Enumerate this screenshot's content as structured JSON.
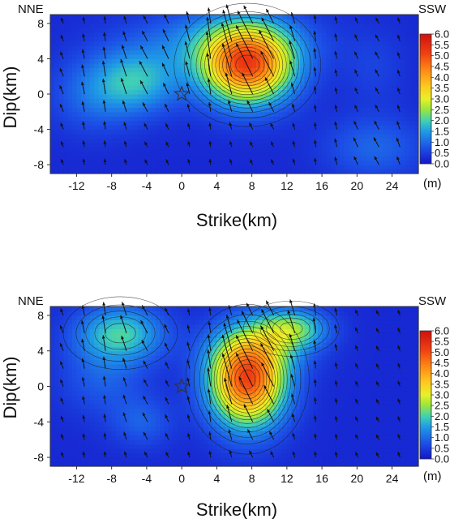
{
  "chart_data": [
    {
      "type": "heatmap",
      "xlabel": "Strike(km)",
      "ylabel": "Dip(km)",
      "xlim": [
        -15,
        27
      ],
      "ylim": [
        -9,
        9
      ],
      "xticks": [
        "-12",
        "-8",
        "-4",
        "0",
        "4",
        "8",
        "12",
        "16",
        "20",
        "24"
      ],
      "xtick_values": [
        -12,
        -8,
        -4,
        0,
        4,
        8,
        12,
        16,
        20,
        24
      ],
      "yticks": [
        "8",
        "4",
        "0",
        "-4",
        "-8"
      ],
      "ytick_values": [
        8,
        4,
        0,
        -4,
        -8
      ],
      "left_label": "NNE",
      "right_label": "SSW",
      "hypocenter": [
        0,
        0
      ],
      "colorbar": {
        "ticks": [
          "6.0",
          "5.5",
          "5.0",
          "4.5",
          "4.0",
          "3.5",
          "3.0",
          "2.5",
          "2.0",
          "1.5",
          "1.0",
          "0.5",
          "0.0"
        ],
        "min": 0,
        "max": 6,
        "unit": "(m)"
      },
      "slip_patches": [
        {
          "x": 7.5,
          "y": 3.3,
          "sx": 3.6,
          "sy": 3.0,
          "peak": 4.5
        },
        {
          "x": 4.5,
          "y": 6.0,
          "sx": 7.0,
          "sy": 2.5,
          "peak": 1.0
        },
        {
          "x": -5.0,
          "y": 1.5,
          "sx": 3.5,
          "sy": 2.5,
          "peak": 1.4
        },
        {
          "x": -10.0,
          "y": 0.0,
          "sx": 3.5,
          "sy": 3.0,
          "peak": 0.7
        },
        {
          "x": 22.0,
          "y": -6.0,
          "sx": 4.0,
          "sy": 2.5,
          "peak": 0.7
        },
        {
          "x": 22.0,
          "y": 3.0,
          "sx": 2.5,
          "sy": 3.0,
          "peak": 0.3
        }
      ]
    },
    {
      "type": "heatmap",
      "xlabel": "Strike(km)",
      "ylabel": "Dip(km)",
      "xlim": [
        -15,
        27
      ],
      "ylim": [
        -9,
        9
      ],
      "xticks": [
        "-12",
        "-8",
        "-4",
        "0",
        "4",
        "8",
        "12",
        "16",
        "20",
        "24"
      ],
      "xtick_values": [
        -12,
        -8,
        -4,
        0,
        4,
        8,
        12,
        16,
        20,
        24
      ],
      "yticks": [
        "8",
        "4",
        "0",
        "-4",
        "-8"
      ],
      "ytick_values": [
        8,
        4,
        0,
        -4,
        -8
      ],
      "left_label": "NNE",
      "right_label": "SSW",
      "hypocenter": [
        0,
        0
      ],
      "colorbar": {
        "ticks": [
          "6.0",
          "5.5",
          "5.0",
          "4.5",
          "4.0",
          "3.5",
          "3.0",
          "2.5",
          "2.0",
          "1.5",
          "1.0",
          "0.5",
          "0.0"
        ],
        "min": 0,
        "max": 6,
        "unit": "(m)"
      },
      "slip_patches": [
        {
          "x": 7.5,
          "y": 0.8,
          "sx": 3.0,
          "sy": 3.6,
          "peak": 4.7
        },
        {
          "x": 12.5,
          "y": 6.5,
          "sx": 2.8,
          "sy": 1.6,
          "peak": 2.0
        },
        {
          "x": 9.0,
          "y": 4.0,
          "sx": 4.0,
          "sy": 2.0,
          "peak": 0.7
        },
        {
          "x": -7.0,
          "y": 6.0,
          "sx": 3.5,
          "sy": 2.2,
          "peak": 1.7
        },
        {
          "x": -9.0,
          "y": 1.0,
          "sx": 3.5,
          "sy": 3.0,
          "peak": 0.6
        },
        {
          "x": -4.5,
          "y": -4.0,
          "sx": 2.5,
          "sy": 2.0,
          "peak": 0.6
        }
      ]
    }
  ]
}
